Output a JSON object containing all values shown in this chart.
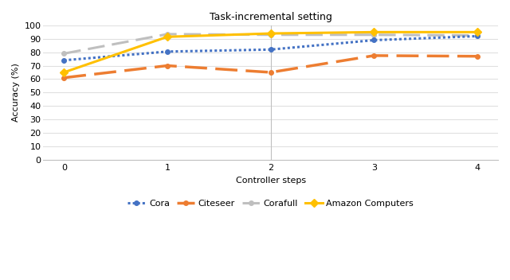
{
  "title": "Task-incremental setting",
  "xlabel": "Controller steps",
  "ylabel": "Accuracy (%)",
  "x": [
    0,
    1,
    2,
    3,
    4
  ],
  "cora": [
    74,
    80.5,
    82,
    89,
    92
  ],
  "citeseer": [
    61,
    70,
    65,
    77.5,
    77
  ],
  "corafull": [
    79,
    93.5,
    93,
    93,
    92.5
  ],
  "amazon": [
    65,
    91.5,
    94,
    95,
    95
  ],
  "cora_color": "#4472C4",
  "citeseer_color": "#ED7D31",
  "corafull_color": "#BFBFBF",
  "amazon_color": "#FFC000",
  "ylim": [
    0,
    100
  ],
  "yticks": [
    0,
    10,
    20,
    30,
    40,
    50,
    60,
    70,
    80,
    90,
    100
  ],
  "xticks": [
    0,
    1,
    2,
    3,
    4
  ],
  "vline_x": 2,
  "background_color": "#FFFFFF",
  "grid_color": "#E0E0E0",
  "title_fontsize": 9,
  "axis_label_fontsize": 8,
  "tick_fontsize": 8,
  "legend_fontsize": 8
}
